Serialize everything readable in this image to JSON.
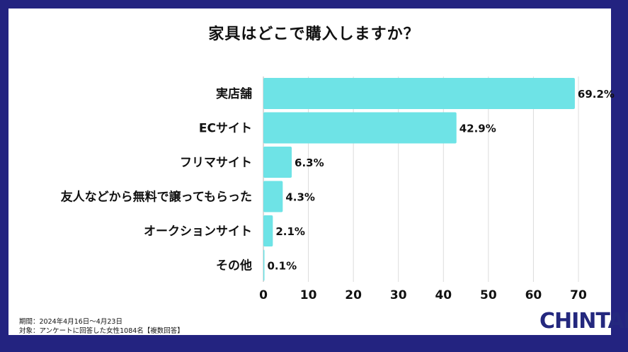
{
  "chart_data": {
    "type": "bar",
    "orientation": "horizontal",
    "title": "家具はどこで購入しますか？",
    "categories": [
      "実店舗",
      "ECサイト",
      "フリマサイト",
      "友人などから無料で譲ってもらった",
      "オークションサイト",
      "その他"
    ],
    "values": [
      69.2,
      42.9,
      6.3,
      4.3,
      2.1,
      0.1
    ],
    "value_labels": [
      "69.2%",
      "42.9%",
      "6.3%",
      "4.3%",
      "2.1%",
      "0.1%"
    ],
    "xlim": [
      0,
      70
    ],
    "xticks": [
      0,
      10,
      20,
      30,
      40,
      50,
      60,
      70
    ],
    "grid": true,
    "bar_color": "#6ee3e6",
    "grid_color": "#dcdcdc"
  },
  "footer": {
    "period": "期間：2024年4月16日〜4月23日",
    "subject": "対象：アンケートに回答した女性1084名【複数回答】"
  },
  "logo": {
    "text": "CHINTAI"
  },
  "colors": {
    "frame": "#232380",
    "logo": "#24287e"
  }
}
